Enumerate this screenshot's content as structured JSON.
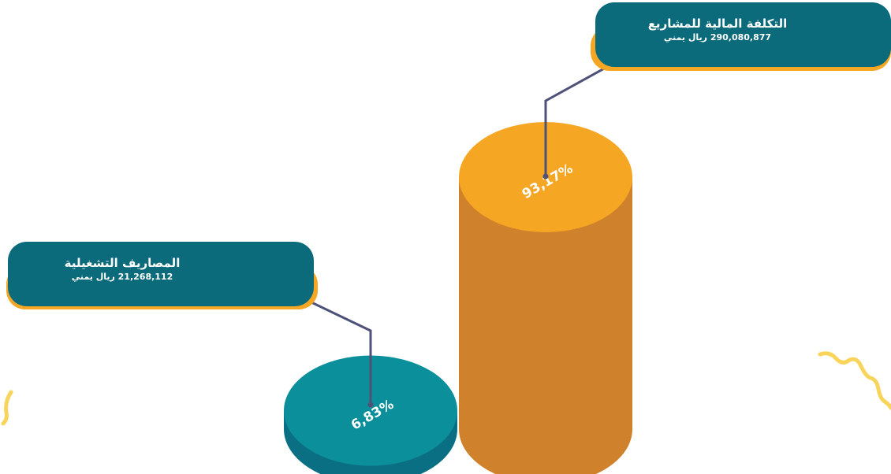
{
  "chart_data": {
    "type": "bar",
    "categories": [
      "المصاريف التشغيلية",
      "التكلفة المالية للمشاريع"
    ],
    "values": [
      21268112,
      290080877
    ],
    "percent_labels": [
      "6,83%",
      "93,17%"
    ],
    "value_labels": [
      "21,268,112 ريال يمني",
      "290,080,877 ريال يمني"
    ],
    "colors": {
      "cylinder_teal_top": "#0b8f9b",
      "cylinder_teal_side": "#0a6f82",
      "cylinder_orange_top": "#f5a623",
      "cylinder_orange_side": "#d0812b",
      "label_box": "#0c6b7b",
      "label_accent": "#f5a623",
      "leader_line": "#4f5278",
      "squiggle": "#f8d55a"
    }
  },
  "labels": {
    "operating": {
      "title": "المصاريف التشغيلية",
      "value": "21,268,112 ريال يمني"
    },
    "projects": {
      "title": "التكلفة المالية للمشاريع",
      "value": "290,080,877 ريال يمني"
    }
  },
  "percents": {
    "operating": "6,83%",
    "projects": "93,17%"
  }
}
